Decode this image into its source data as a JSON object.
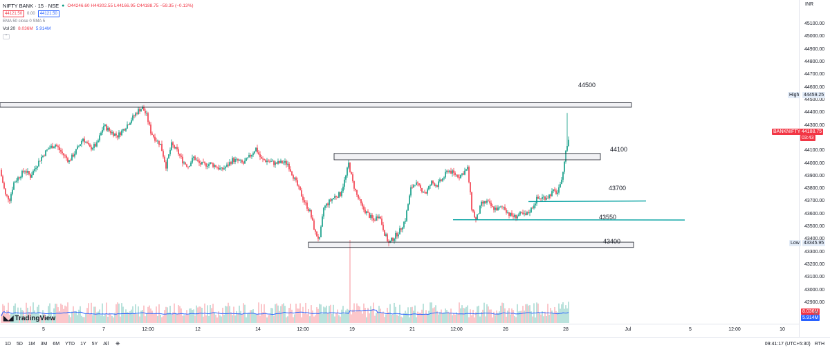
{
  "header": {
    "symbol": "NIFTY BANK · 15 · NSE",
    "ohlc": "O44246.60 H44302.55 L44166.95 C44188.75 −59.35 (−0.13%)",
    "bid": "44121.50",
    "spread": "0.00",
    "ask": "44121.50",
    "ema_label": "EMA 50 close 0 SMA 5",
    "vol_label": "Vol 20",
    "vol_value1": "8.036M",
    "vol_value2": "5.914M"
  },
  "price_axis": {
    "currency": "INR",
    "ticks": [
      "45100.00",
      "45000.00",
      "44900.00",
      "44800.00",
      "44700.00",
      "44600.00",
      "44500.00",
      "44400.00",
      "44300.00",
      "44100.00",
      "44000.00",
      "43900.00",
      "43800.00",
      "43700.00",
      "43600.00",
      "43500.00",
      "43400.00",
      "43300.00",
      "43200.00",
      "43100.00",
      "43000.00",
      "42900.00"
    ],
    "high_label": "High",
    "high_value": "44459.25",
    "low_label": "Low",
    "low_value": "43345.95",
    "last_symbol": "BANKNIFTY",
    "last_value": "44188.75",
    "countdown": "03:43",
    "vol_tag1": "8.036M",
    "vol_tag2": "5.914M"
  },
  "time_axis": {
    "labels": [
      "5",
      "7",
      "12:00",
      "12",
      "14",
      "12:00",
      "19",
      "21",
      "12:00",
      "26",
      "28",
      "Jul",
      "5",
      "12:00",
      "10"
    ]
  },
  "zones": {
    "z44500": "44500",
    "z44100": "44100",
    "z43700": "43700",
    "z43550": "43550",
    "z43400": "43400"
  },
  "bottom": {
    "timeframes": [
      "1D",
      "5D",
      "1M",
      "3M",
      "6M",
      "YTD",
      "1Y",
      "5Y",
      "All"
    ],
    "clock": "09:41:17 (UTC+5:30)",
    "mode": "RTH"
  },
  "brand": "TradingView",
  "colors": {
    "up": "#089981",
    "down": "#f23645",
    "ema": "#2962ff",
    "level": "#00a0a0"
  },
  "chart_data": {
    "type": "candlestick",
    "symbol": "NIFTY BANK",
    "interval": "15",
    "exchange": "NSE",
    "ylim": [
      42850,
      45150
    ],
    "close_path": [
      [
        0,
        43950
      ],
      [
        8,
        43750
      ],
      [
        14,
        43720
      ],
      [
        20,
        43850
      ],
      [
        28,
        43900
      ],
      [
        36,
        43950
      ],
      [
        44,
        43900
      ],
      [
        52,
        43980
      ],
      [
        60,
        44050
      ],
      [
        70,
        44120
      ],
      [
        80,
        44150
      ],
      [
        90,
        44080
      ],
      [
        100,
        44020
      ],
      [
        110,
        44100
      ],
      [
        120,
        44200
      ],
      [
        130,
        44120
      ],
      [
        140,
        44150
      ],
      [
        150,
        44300
      ],
      [
        160,
        44250
      ],
      [
        170,
        44220
      ],
      [
        180,
        44280
      ],
      [
        190,
        44350
      ],
      [
        200,
        44420
      ],
      [
        206,
        44440
      ],
      [
        212,
        44380
      ],
      [
        218,
        44250
      ],
      [
        224,
        44200
      ],
      [
        232,
        44150
      ],
      [
        240,
        43980
      ],
      [
        248,
        44150
      ],
      [
        256,
        44100
      ],
      [
        264,
        44020
      ],
      [
        272,
        43980
      ],
      [
        280,
        44050
      ],
      [
        288,
        44000
      ],
      [
        296,
        43990
      ],
      [
        304,
        44000
      ],
      [
        312,
        43980
      ],
      [
        320,
        43950
      ],
      [
        328,
        43980
      ],
      [
        336,
        44030
      ],
      [
        344,
        44020
      ],
      [
        352,
        44000
      ],
      [
        360,
        44050
      ],
      [
        370,
        44120
      ],
      [
        378,
        44030
      ],
      [
        388,
        44020
      ],
      [
        398,
        44000
      ],
      [
        408,
        44010
      ],
      [
        416,
        44000
      ],
      [
        424,
        43900
      ],
      [
        432,
        43800
      ],
      [
        440,
        43700
      ],
      [
        448,
        43620
      ],
      [
        456,
        43450
      ],
      [
        462,
        43400
      ],
      [
        468,
        43650
      ],
      [
        476,
        43700
      ],
      [
        484,
        43740
      ],
      [
        492,
        43760
      ],
      [
        500,
        43900
      ],
      [
        504,
        44000
      ],
      [
        510,
        43850
      ],
      [
        516,
        43750
      ],
      [
        524,
        43650
      ],
      [
        532,
        43600
      ],
      [
        540,
        43550
      ],
      [
        548,
        43600
      ],
      [
        556,
        43450
      ],
      [
        562,
        43370
      ],
      [
        570,
        43420
      ],
      [
        578,
        43470
      ],
      [
        586,
        43560
      ],
      [
        594,
        43800
      ],
      [
        600,
        43850
      ],
      [
        608,
        43800
      ],
      [
        616,
        43770
      ],
      [
        624,
        43850
      ],
      [
        632,
        43830
      ],
      [
        640,
        43880
      ],
      [
        648,
        43950
      ],
      [
        656,
        43920
      ],
      [
        664,
        43900
      ],
      [
        670,
        43930
      ],
      [
        676,
        43960
      ],
      [
        682,
        43650
      ],
      [
        688,
        43550
      ],
      [
        696,
        43680
      ],
      [
        704,
        43700
      ],
      [
        712,
        43650
      ],
      [
        720,
        43640
      ],
      [
        728,
        43660
      ],
      [
        736,
        43600
      ],
      [
        744,
        43580
      ],
      [
        752,
        43600
      ],
      [
        760,
        43590
      ],
      [
        768,
        43640
      ],
      [
        776,
        43720
      ],
      [
        784,
        43730
      ],
      [
        792,
        43740
      ],
      [
        800,
        43780
      ],
      [
        806,
        43770
      ],
      [
        810,
        43820
      ],
      [
        814,
        43950
      ],
      [
        818,
        44100
      ],
      [
        822,
        44190
      ]
    ]
  }
}
